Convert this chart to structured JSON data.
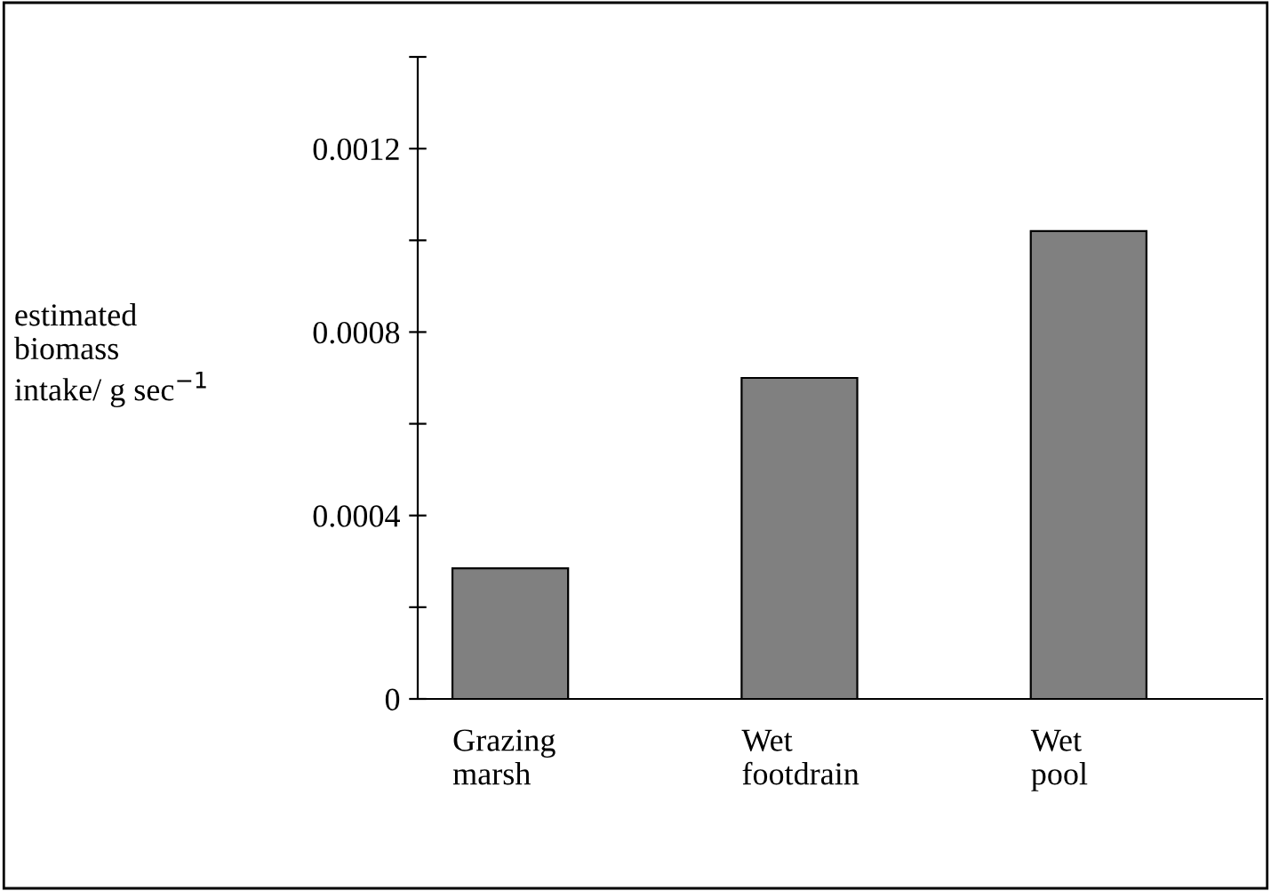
{
  "chart_data": {
    "type": "bar",
    "ylabel": "estimated\nbiomass\nintake/ g sec$^{−1}$",
    "categories": [
      "Grazing\nmarsh",
      "Wet\nfootdrain",
      "Wet\npool"
    ],
    "values": [
      0.000285,
      0.0007,
      0.00102
    ],
    "color": "#808080",
    "ylim": [
      0,
      0.0014
    ],
    "yticks": [
      0,
      {
        "value": 0.0002,
        "label": null
      },
      0.0004,
      {
        "value": 0.0006,
        "label": null
      },
      0.0008,
      {
        "value": 0.001,
        "label": null
      },
      0.0012,
      {
        "value": 0.0014,
        "label": null
      }
    ],
    "grid": false,
    "legend": false
  }
}
